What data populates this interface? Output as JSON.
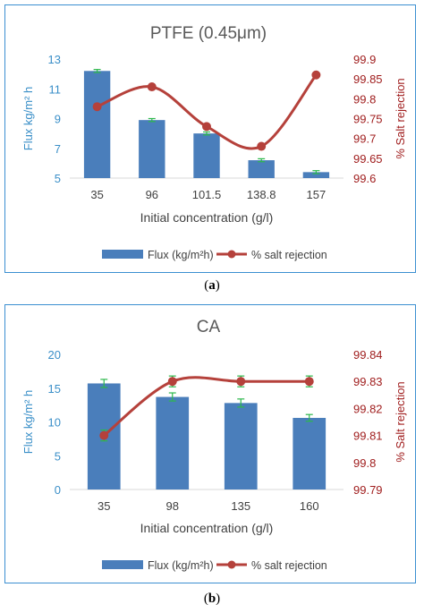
{
  "captions": [
    "(a)",
    "(b)"
  ],
  "colors": {
    "bar": "#4a7ebb",
    "line": "#b5413b",
    "error_bar": "#2db84c",
    "left_axis_text": "#3a8fc8",
    "right_axis_text": "#a01e1e",
    "title": "#595959",
    "panel_border": "#3b8fd1"
  },
  "chart_data": [
    {
      "type": "bar",
      "title": "PTFE (0.45μm)",
      "xlabel": "Initial concentration (g/l)",
      "ylabel": "Flux kg/m² h",
      "ylabel2": "% Salt rejection",
      "categories": [
        "35",
        "96",
        "101.5",
        "138.8",
        "157"
      ],
      "ylim": [
        5,
        13
      ],
      "yticks": [
        "5",
        "7",
        "9",
        "11",
        "13"
      ],
      "y2lim": [
        99.6,
        99.9
      ],
      "y2ticks": [
        "99.6",
        "99.65",
        "99.7",
        "99.75",
        "99.8",
        "99.85",
        "99.9"
      ],
      "series": [
        {
          "name": "Flux (kg/m²h)",
          "type": "bar",
          "axis": "left",
          "values": [
            12.2,
            8.9,
            8.0,
            6.2,
            5.4
          ],
          "errors": [
            0.1,
            0.1,
            0.1,
            0.1,
            0.1
          ]
        },
        {
          "name": "% salt rejection",
          "type": "line",
          "axis": "right",
          "values": [
            99.78,
            99.83,
            99.73,
            99.68,
            99.86
          ],
          "errors": [
            0,
            0,
            0,
            0,
            0
          ]
        }
      ],
      "legend_position": "bottom"
    },
    {
      "type": "bar",
      "title": "CA",
      "xlabel": "Initial concentration (g/l)",
      "ylabel": "Flux kg/m² h",
      "ylabel2": "% Salt rejection",
      "categories": [
        "35",
        "98",
        "135",
        "160"
      ],
      "ylim": [
        0,
        20
      ],
      "yticks": [
        "0",
        "5",
        "10",
        "15",
        "20"
      ],
      "y2lim": [
        99.79,
        99.84
      ],
      "y2ticks": [
        "99.79",
        "99.8",
        "99.81",
        "99.82",
        "99.83",
        "99.84"
      ],
      "series": [
        {
          "name": "Flux (kg/m²h)",
          "type": "bar",
          "axis": "left",
          "values": [
            15.7,
            13.7,
            12.8,
            10.6
          ],
          "errors": [
            0.6,
            0.6,
            0.6,
            0.5
          ]
        },
        {
          "name": "% salt rejection",
          "type": "line",
          "axis": "right",
          "values": [
            99.81,
            99.83,
            99.83,
            99.83
          ],
          "errors": [
            0.002,
            0.002,
            0.002,
            0.002
          ]
        }
      ],
      "legend_position": "bottom"
    }
  ]
}
